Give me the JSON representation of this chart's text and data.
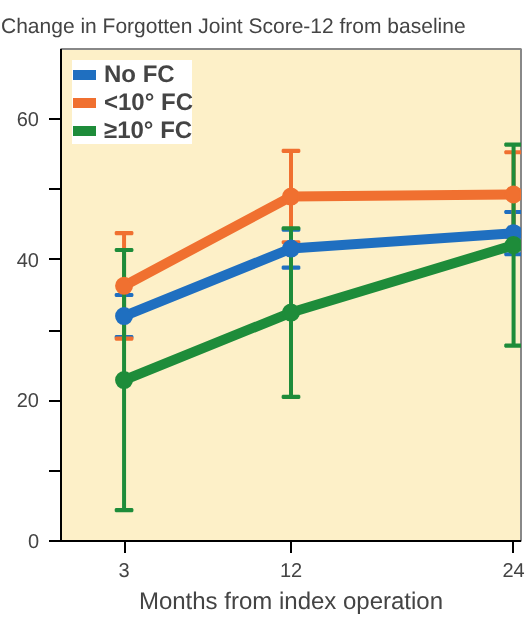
{
  "chart_data": {
    "type": "line",
    "title": "Change in Forgotten Joint Score-12 from baseline",
    "xlabel": "Months from index operation",
    "x": [
      3,
      12,
      24
    ],
    "xlim": [
      -0.4,
      24.4
    ],
    "xticks": [
      3,
      12,
      24
    ],
    "ylim": [
      0,
      70
    ],
    "yticks": [
      0,
      {
        "value": 10,
        "label": null
      },
      20,
      {
        "value": 30,
        "label": null
      },
      40,
      {
        "value": 50,
        "label": null
      },
      60
    ],
    "grid": false,
    "legend": "top left",
    "marker": "circle",
    "line_style": "solid",
    "series": [
      {
        "name": "No FC",
        "color": "#1f6fc0",
        "values": [
          32,
          41.6,
          43.8
        ],
        "errors": [
          3,
          2.7,
          3
        ]
      },
      {
        "name": "<10° FC",
        "color": "#f07030",
        "values": [
          36.3,
          49,
          49.3
        ],
        "errors": [
          7.5,
          6.5,
          6
        ]
      },
      {
        "name": "≥10° FC",
        "color": "#1e8c3a",
        "values": [
          22.9,
          32.5,
          42.1
        ],
        "errors": [
          18.5,
          12,
          14.3
        ]
      }
    ]
  }
}
